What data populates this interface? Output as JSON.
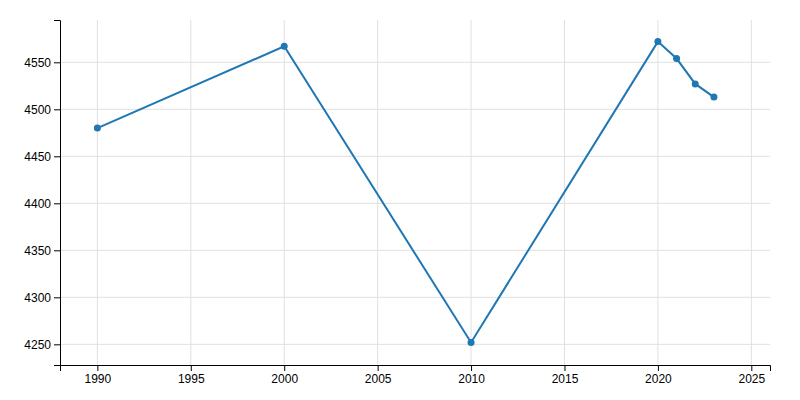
{
  "chart_data": {
    "type": "line",
    "x": [
      1990,
      2000,
      2010,
      2020,
      2021,
      2022,
      2023
    ],
    "values": [
      4480,
      4567,
      4252,
      4572,
      4554,
      4527,
      4513
    ],
    "marker": "circle",
    "xlim": [
      1988,
      2026
    ],
    "ylim": [
      4228,
      4595
    ],
    "xticks": [
      1990,
      1995,
      2000,
      2005,
      2010,
      2015,
      2020,
      2025
    ],
    "yticks": [
      4250,
      4300,
      4350,
      4400,
      4450,
      4500,
      4550
    ],
    "grid": true
  }
}
